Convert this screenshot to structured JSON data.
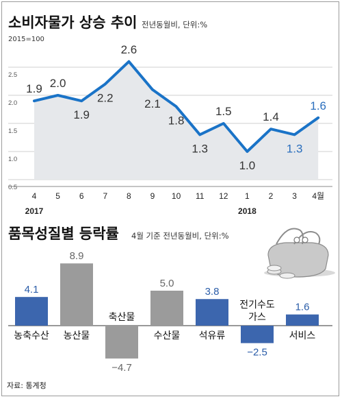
{
  "source": "자료: 통계청",
  "chart_data": [
    {
      "type": "line",
      "title": "소비자물가 상승 추이",
      "subtitle": "전년동월비, 단위:%",
      "base_note": "2015=100",
      "x": [
        "4",
        "5",
        "6",
        "7",
        "8",
        "9",
        "10",
        "11",
        "12",
        "1",
        "2",
        "3",
        "4월"
      ],
      "year_labels": [
        {
          "label": "2017",
          "at_index": 0
        },
        {
          "label": "2018",
          "at_index": 9
        }
      ],
      "series": [
        {
          "values": [
            1.9,
            2.0,
            1.9,
            2.2,
            2.6,
            2.1,
            1.8,
            1.3,
            1.5,
            1.0,
            1.4,
            1.3,
            1.6
          ]
        }
      ],
      "value_labels": [
        "1.9",
        "2.0",
        "1.9",
        "2.2",
        "2.6",
        "2.1",
        "1.8",
        "1.3",
        "1.5",
        "1.0",
        "1.4",
        "1.3",
        "1.6"
      ],
      "highlight_last": 2,
      "ylim": [
        0.5,
        2.5
      ],
      "yticks": [
        "0.5",
        "1.0",
        "1.5",
        "2.0",
        "2.5"
      ],
      "grid": true,
      "colors": {
        "line": "#1a73c7",
        "area": "#e6e8eb",
        "highlight_text": "#2a6ebd",
        "grid": "#cfcfcf"
      }
    },
    {
      "type": "bar",
      "title": "품목성질별 등락률",
      "subtitle": "4월 기준 전년동월비, 단위:%",
      "categories": [
        "농축수산",
        "농산물",
        "축산물",
        "수산물",
        "석유류",
        "전기수도가스",
        "서비스"
      ],
      "category_labels": [
        [
          "농축수산"
        ],
        [
          "농산물"
        ],
        [
          "축산물"
        ],
        [
          "수산물"
        ],
        [
          "석유류"
        ],
        [
          "전기수도",
          "가스"
        ],
        [
          "서비스"
        ]
      ],
      "values": [
        4.1,
        8.9,
        -4.7,
        5.0,
        3.8,
        -2.5,
        1.6
      ],
      "value_labels": [
        "4.1",
        "8.9",
        "−4.7",
        "5.0",
        "3.8",
        "−2.5",
        "1.6"
      ],
      "bar_colors": [
        "#3c66ae",
        "#9b9b9b",
        "#9b9b9b",
        "#9b9b9b",
        "#3c66ae",
        "#3c66ae",
        "#3c66ae"
      ],
      "value_label_colors": [
        "#2a5ca8",
        "#666666",
        "#666666",
        "#666666",
        "#2a5ca8",
        "#2a5ca8",
        "#2a5ca8"
      ]
    }
  ]
}
